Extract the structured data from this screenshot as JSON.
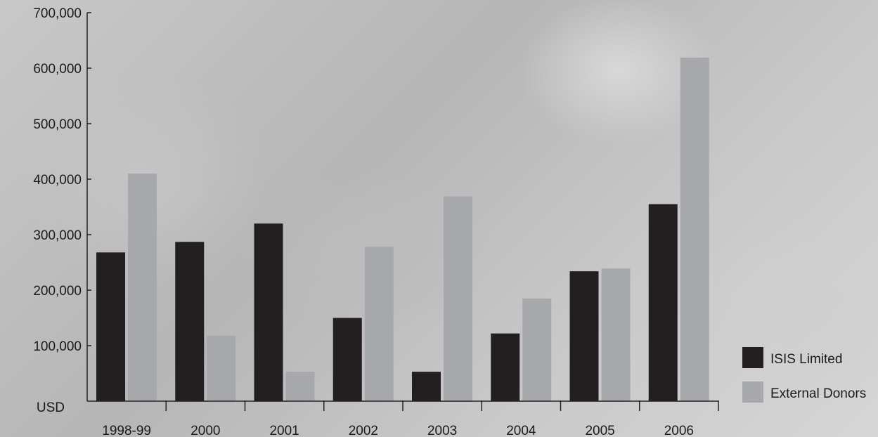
{
  "chart_data": {
    "type": "bar",
    "categories": [
      "1998-99",
      "2000",
      "2001",
      "2002",
      "2003",
      "2004",
      "2005",
      "2006"
    ],
    "series": [
      {
        "name": "ISIS Limited",
        "values": [
          268000,
          287000,
          320000,
          150000,
          53000,
          122000,
          234000,
          355000
        ],
        "color": "#231f20"
      },
      {
        "name": "External Donors",
        "values": [
          410000,
          118000,
          53000,
          278000,
          369000,
          185000,
          239000,
          619000
        ],
        "color": "#a7a8ab"
      }
    ],
    "y_ticks": [
      "100,000",
      "200,000",
      "300,000",
      "400,000",
      "500,000",
      "600,000",
      "700,000"
    ],
    "y_tick_values": [
      100000,
      200000,
      300000,
      400000,
      500000,
      600000,
      700000
    ],
    "ylabel": "USD",
    "ylim": [
      0,
      700000
    ],
    "grid": false,
    "legend_position": "bottom-right"
  }
}
